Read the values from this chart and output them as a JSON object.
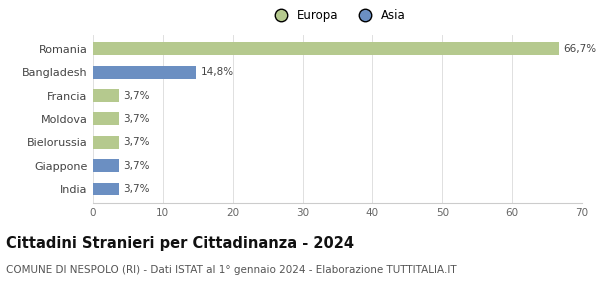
{
  "categories": [
    "Romania",
    "Bangladesh",
    "Francia",
    "Moldova",
    "Bielorussia",
    "Giappone",
    "India"
  ],
  "values": [
    66.7,
    14.8,
    3.7,
    3.7,
    3.7,
    3.7,
    3.7
  ],
  "colors": [
    "#b5c98e",
    "#6b8fc2",
    "#b5c98e",
    "#b5c98e",
    "#b5c98e",
    "#6b8fc2",
    "#6b8fc2"
  ],
  "labels": [
    "66,7%",
    "14,8%",
    "3,7%",
    "3,7%",
    "3,7%",
    "3,7%",
    "3,7%"
  ],
  "legend_labels": [
    "Europa",
    "Asia"
  ],
  "legend_colors": [
    "#b5c98e",
    "#6b8fc2"
  ],
  "xlim": [
    0,
    70
  ],
  "xticks": [
    0,
    10,
    20,
    30,
    40,
    50,
    60,
    70
  ],
  "title": "Cittadini Stranieri per Cittadinanza - 2024",
  "subtitle": "COMUNE DI NESPOLO (RI) - Dati ISTAT al 1° gennaio 2024 - Elaborazione TUTTITALIA.IT",
  "title_fontsize": 10.5,
  "subtitle_fontsize": 7.5,
  "background_color": "#ffffff"
}
